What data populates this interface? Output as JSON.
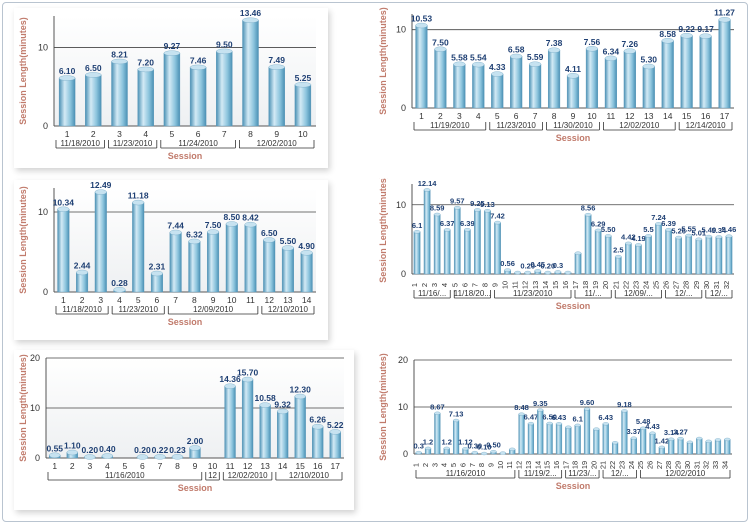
{
  "colors": {
    "bar_light": "#d3eaf5",
    "bar_mid": "#8cc4dd",
    "bar_dark": "#4a90b4",
    "value_label": "#1e3f73",
    "axis_title": "#c17b6c",
    "tick_text": "#333333",
    "gridline": "#444444"
  },
  "chart_data": [
    {
      "type": "bar",
      "ylabel": "Session Length(minutes)",
      "xlabel": "Session",
      "ylim": [
        0,
        14
      ],
      "yticks": [
        0,
        10
      ],
      "categories": [
        "1",
        "2",
        "3",
        "4",
        "5",
        "6",
        "7",
        "8",
        "9",
        "10"
      ],
      "values": [
        6.1,
        6.5,
        8.21,
        7.2,
        9.27,
        7.46,
        9.5,
        13.46,
        7.49,
        5.25
      ],
      "value_labels": [
        "6.10",
        "6.50",
        "8.21",
        "7.20",
        "9.27",
        "7.46",
        "9.50",
        "13.46",
        "7.49",
        "5.25"
      ],
      "groups": [
        {
          "label": "11/18/2010",
          "from": 1,
          "to": 2
        },
        {
          "label": "11/23/2010",
          "from": 3,
          "to": 4
        },
        {
          "label": "11/24/2010",
          "from": 5,
          "to": 7
        },
        {
          "label": "12/02/2010",
          "from": 8,
          "to": 10
        }
      ],
      "grid": true
    },
    {
      "type": "bar",
      "ylabel": "Session Length(minutes)",
      "xlabel": "Session",
      "ylim": [
        0,
        12
      ],
      "yticks": [
        0,
        10
      ],
      "categories": [
        "1",
        "2",
        "3",
        "4",
        "5",
        "6",
        "7",
        "8",
        "9",
        "10",
        "11",
        "12",
        "13",
        "14",
        "15",
        "16",
        "17"
      ],
      "values": [
        10.53,
        7.5,
        5.58,
        5.54,
        4.33,
        6.58,
        5.59,
        7.38,
        4.11,
        7.56,
        6.34,
        7.26,
        5.3,
        8.58,
        9.22,
        9.17,
        11.27
      ],
      "value_labels": [
        "10.53",
        "7.50",
        "5.58",
        "5.54",
        "4.33",
        "6.58",
        "5.59",
        "7.38",
        "4.11",
        "7.56",
        "6.34",
        "7.26",
        "5.30",
        "8.58",
        "9.22",
        "9.17",
        "11.27"
      ],
      "groups": [
        {
          "label": "11/19/2010",
          "from": 1,
          "to": 4
        },
        {
          "label": "11/23/2010",
          "from": 5,
          "to": 7
        },
        {
          "label": "11/30/2010",
          "from": 8,
          "to": 10
        },
        {
          "label": "12/02/2010",
          "from": 11,
          "to": 14
        },
        {
          "label": "12/14/2010",
          "from": 15,
          "to": 17
        }
      ],
      "grid": true
    },
    {
      "type": "bar",
      "ylabel": "Session Length(minutes)",
      "xlabel": "Session",
      "ylim": [
        0,
        13
      ],
      "yticks": [
        0,
        10
      ],
      "categories": [
        "1",
        "2",
        "3",
        "4",
        "5",
        "6",
        "7",
        "8",
        "9",
        "10",
        "11",
        "12",
        "13",
        "14"
      ],
      "values": [
        10.34,
        2.44,
        12.49,
        0.28,
        11.18,
        2.31,
        7.44,
        6.32,
        7.5,
        8.5,
        8.42,
        6.5,
        5.5,
        4.9
      ],
      "value_labels": [
        "10.34",
        "2.44",
        "12.49",
        "0.28",
        "11.18",
        "2.31",
        "7.44",
        "6.32",
        "7.50",
        "8.50",
        "8.42",
        "6.50",
        "5.50",
        "4.90"
      ],
      "groups": [
        {
          "label": "11/18/2010",
          "from": 1,
          "to": 3
        },
        {
          "label": "11/23/2010",
          "from": 4,
          "to": 6
        },
        {
          "label": "12/09/2010",
          "from": 7,
          "to": 11
        },
        {
          "label": "12/10/2010",
          "from": 12,
          "to": 14
        }
      ],
      "grid": true
    },
    {
      "type": "bar",
      "ylabel": "Session Length(minutes)",
      "xlabel": "Session",
      "ylim": [
        0,
        13
      ],
      "yticks": [
        0,
        10
      ],
      "categories": [
        "1",
        "2",
        "3",
        "4",
        "5",
        "6",
        "7",
        "8",
        "9",
        "10",
        "11",
        "12",
        "13",
        "14",
        "15",
        "16",
        "17",
        "18",
        "19",
        "20",
        "21",
        "22",
        "23",
        "24",
        "25",
        "26",
        "27",
        "28",
        "29",
        "30",
        "31",
        "32"
      ],
      "values": [
        6.1,
        12.14,
        8.59,
        6.37,
        9.57,
        6.39,
        9.25,
        9.13,
        7.42,
        0.56,
        0.2,
        0.2,
        0.45,
        0.2,
        0.3,
        0.2,
        3.0,
        8.56,
        6.29,
        5.5,
        2.5,
        4.42,
        4.19,
        5.5,
        7.24,
        6.39,
        5.26,
        5.55,
        5.01,
        5.4,
        5.34,
        5.46
      ],
      "value_labels": [
        "6.1",
        "12.14",
        "8.59",
        "6.37",
        "9.57",
        "6.39",
        "9.25",
        "9.13",
        "7.42",
        "0.56",
        "",
        "0.20",
        "0.45",
        "0.20",
        "0.3",
        "",
        "",
        "8.56",
        "6.29",
        "5.50",
        "2.5",
        "4.42",
        "4.19",
        "5.5",
        "7.24",
        "6.39",
        "5.26",
        "5.55",
        "5.01",
        "5.40",
        "5.34",
        "5.46"
      ],
      "groups": [
        {
          "label": "11/16/...",
          "from": 1,
          "to": 4
        },
        {
          "label": "11/18/20...",
          "from": 5,
          "to": 8
        },
        {
          "label": "11/23/2010",
          "from": 9,
          "to": 16
        },
        {
          "label": "11/...",
          "from": 17,
          "to": 20
        },
        {
          "label": "12/09/...",
          "from": 21,
          "to": 25
        },
        {
          "label": "12/...",
          "from": 26,
          "to": 29
        },
        {
          "label": "12/...",
          "from": 30,
          "to": 32
        }
      ],
      "grid": true
    },
    {
      "type": "bar",
      "ylabel": "Session Length(minutes)",
      "xlabel": "Session",
      "ylim": [
        0,
        20
      ],
      "yticks": [
        0,
        10,
        20
      ],
      "categories": [
        "1",
        "2",
        "3",
        "4",
        "5",
        "6",
        "7",
        "8",
        "9",
        "10",
        "11",
        "12",
        "13",
        "14",
        "15",
        "16",
        "17"
      ],
      "values": [
        0.55,
        1.1,
        0.2,
        0.4,
        0.0,
        0.2,
        0.22,
        0.23,
        2.0,
        0.0,
        14.36,
        15.7,
        10.58,
        9.32,
        12.3,
        6.26,
        5.22
      ],
      "value_labels": [
        "0.55",
        "1.10",
        "0.20",
        "0.40",
        "",
        "0.20",
        "0.22",
        "0.23",
        "2.00",
        "",
        "14.36",
        "15.70",
        "10.58",
        "9.32",
        "12.30",
        "6.26",
        "5.22"
      ],
      "groups": [
        {
          "label": "11/16/2010",
          "from": 1,
          "to": 9
        },
        {
          "label": "12",
          "from": 10,
          "to": 10
        },
        {
          "label": "12/02/2010",
          "from": 11,
          "to": 13
        },
        {
          "label": "12/10/2010",
          "from": 14,
          "to": 17
        }
      ],
      "grid": true
    },
    {
      "type": "bar",
      "ylabel": "Session Length(minutes)",
      "xlabel": "Session",
      "ylim": [
        0,
        20
      ],
      "yticks": [
        0,
        10,
        20
      ],
      "categories": [
        "1",
        "2",
        "3",
        "4",
        "5",
        "6",
        "7",
        "8",
        "9",
        "10",
        "11",
        "12",
        "13",
        "14",
        "15",
        "16",
        "17",
        "18",
        "19",
        "20",
        "21",
        "22",
        "23",
        "24",
        "25",
        "26",
        "27",
        "28",
        "29",
        "30",
        "31",
        "32",
        "33",
        "34"
      ],
      "values": [
        0.3,
        1.2,
        8.67,
        1.2,
        7.13,
        1.12,
        0.3,
        0.1,
        0.5,
        0.2,
        1.0,
        8.48,
        6.47,
        9.35,
        6.5,
        6.43,
        5.7,
        6.1,
        9.6,
        5.3,
        6.43,
        2.4,
        9.18,
        3.37,
        5.48,
        4.43,
        1.42,
        3.14,
        3.27,
        2.5,
        3.3,
        2.7,
        3.0,
        3.1
      ],
      "value_labels": [
        "0.3",
        "1.2",
        "8.67",
        "1.2",
        "7.13",
        "1.12",
        "0.30",
        "0.10",
        "0.50",
        "",
        "",
        "8.48",
        "6.47",
        "9.35",
        "6.50",
        "6.43",
        "",
        "6.1",
        "9.60",
        "",
        "6.43",
        "",
        "9.18",
        "3.37",
        "5.48",
        "4.43",
        "1.42",
        "3.14",
        "3.27",
        "",
        "",
        "",
        "",
        ""
      ],
      "groups": [
        {
          "label": "11/16/2010",
          "from": 1,
          "to": 11
        },
        {
          "label": "11/19/2...",
          "from": 12,
          "to": 16
        },
        {
          "label": "11/23/...",
          "from": 17,
          "to": 20
        },
        {
          "label": "12/...",
          "from": 21,
          "to": 24
        },
        {
          "label": "12/02/2010",
          "from": 25,
          "to": 34
        }
      ],
      "grid": true
    }
  ]
}
